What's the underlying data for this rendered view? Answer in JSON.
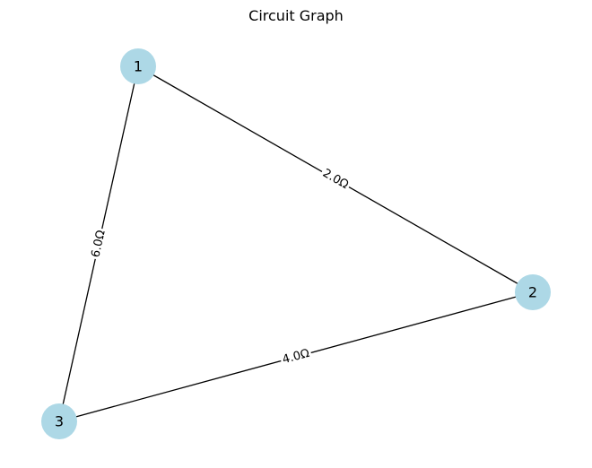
{
  "title": "Circuit Graph",
  "colors": {
    "node_fill": "#add8e6",
    "edge": "#000000",
    "text": "#000000",
    "background": "#ffffff"
  },
  "nodes": [
    {
      "id": "1",
      "label": "1"
    },
    {
      "id": "2",
      "label": "2"
    },
    {
      "id": "3",
      "label": "3"
    }
  ],
  "edges": [
    {
      "source": "1",
      "target": "2",
      "label": "2.0Ω"
    },
    {
      "source": "2",
      "target": "3",
      "label": "4.0Ω"
    },
    {
      "source": "1",
      "target": "3",
      "label": "6.0Ω"
    }
  ]
}
